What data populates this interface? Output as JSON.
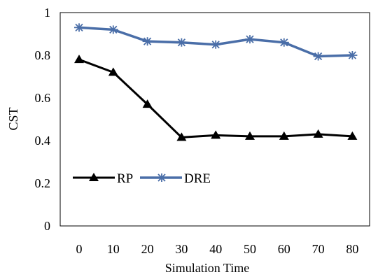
{
  "chart_data": {
    "type": "line",
    "title": "",
    "xlabel": "Simulation Time",
    "ylabel": "CST",
    "x": [
      0,
      10,
      20,
      30,
      40,
      50,
      60,
      70,
      80
    ],
    "x_tick_labels": [
      "0",
      "10",
      "20",
      "30",
      "40",
      "50",
      "60",
      "70",
      "80"
    ],
    "y_tick_labels": [
      "0",
      "0.2",
      "0.4",
      "0.6",
      "0.8",
      "1"
    ],
    "ylim": [
      0,
      1
    ],
    "grid": false,
    "legend_position": "middle-left",
    "series": [
      {
        "name": "RP",
        "color": "#000000",
        "marker": "triangle",
        "values": [
          0.78,
          0.72,
          0.57,
          0.415,
          0.425,
          0.42,
          0.42,
          0.43,
          0.42
        ]
      },
      {
        "name": "DRE",
        "color": "#4a6ea8",
        "marker": "asterisk",
        "values": [
          0.93,
          0.92,
          0.865,
          0.86,
          0.85,
          0.875,
          0.86,
          0.795,
          0.8
        ]
      }
    ]
  }
}
